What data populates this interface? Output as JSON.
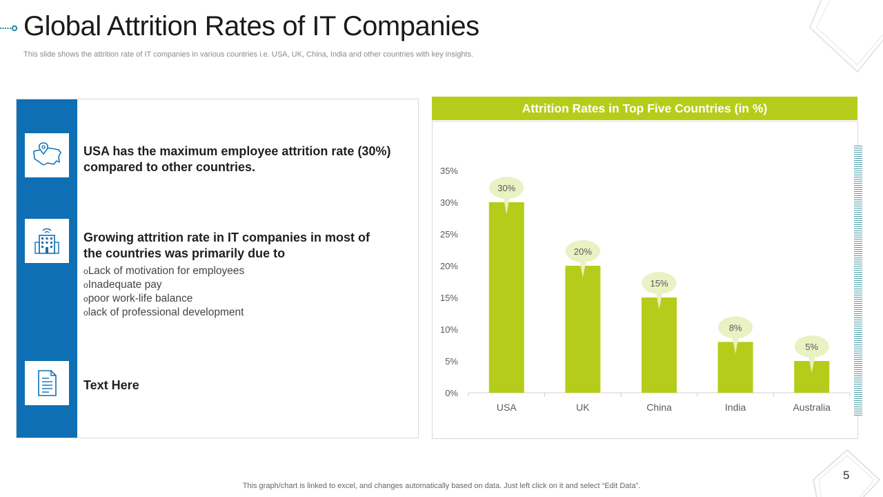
{
  "slide": {
    "title": "Global Attrition Rates of IT Companies",
    "subtitle": "This slide shows the attrition rate of IT companies in various countries i.e. USA, UK, China, India and other countries with key insights.",
    "footer_note": "This graph/chart is linked to excel, and changes automatically based on data. Just left click on it and select “Edit Data”.",
    "page_number": "5"
  },
  "insights": {
    "point1": "USA has the maximum employee attrition rate (30%) compared to other countries.",
    "point2": "Growing attrition rate in IT companies in most of the countries was primarily due to",
    "reasons": [
      "Lack of motivation for employees",
      "Inadequate pay",
      "poor work-life balance",
      "lack of professional development"
    ],
    "point3": "Text Here",
    "icons": [
      "usa-map-icon",
      "office-building-icon",
      "document-icon"
    ]
  },
  "colors": {
    "accent_blue": "#0f6fb4",
    "bar_green": "#b5cd1a",
    "callout": "#eaf1c2"
  },
  "chart_data": {
    "type": "bar",
    "title": "Attrition Rates in Top Five Countries (in %)",
    "categories": [
      "USA",
      "UK",
      "China",
      "India",
      "Australia"
    ],
    "values": [
      30,
      20,
      15,
      8,
      5
    ],
    "data_labels": [
      "30%",
      "20%",
      "15%",
      "8%",
      "5%"
    ],
    "y_ticks": [
      0,
      5,
      10,
      15,
      20,
      25,
      30,
      35
    ],
    "y_tick_labels": [
      "0%",
      "5%",
      "10%",
      "15%",
      "20%",
      "25%",
      "30%",
      "35%"
    ],
    "ylim": [
      0,
      35
    ],
    "xlabel": "",
    "ylabel": "",
    "grid": false,
    "legend": "none"
  }
}
